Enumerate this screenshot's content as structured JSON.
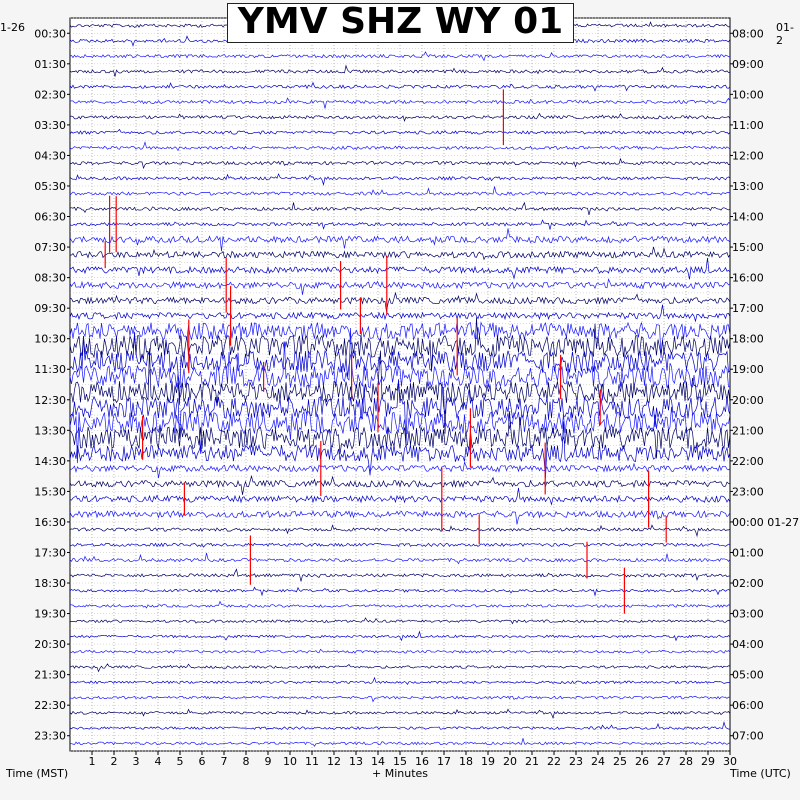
{
  "title": "YMV SHZ WY 01",
  "date_left": "1-26",
  "date_right": "01-2",
  "xlabel_left": "Time (MST)",
  "xlabel_center": "+ Minutes",
  "xlabel_right": "Time (UTC)",
  "colors": {
    "traces": [
      "#000066",
      "#0000cc",
      "#1a1aff"
    ],
    "spike": "#ff0000",
    "grid": "#888888"
  },
  "chart_data": {
    "type": "line",
    "title": "YMV SHZ WY 01",
    "xlabel": "+ Minutes",
    "xlim": [
      0,
      30
    ],
    "x_ticks": [
      1,
      2,
      3,
      4,
      5,
      6,
      7,
      8,
      9,
      10,
      11,
      12,
      13,
      14,
      15,
      16,
      17,
      18,
      19,
      20,
      21,
      22,
      23,
      24,
      25,
      26,
      27,
      28,
      29,
      30
    ],
    "rows_per_hour": 2,
    "left_axis_label": "Time (MST)",
    "left_ticks": [
      "00:30",
      "01:30",
      "02:30",
      "03:30",
      "04:30",
      "05:30",
      "06:30",
      "07:30",
      "08:30",
      "09:30",
      "10:30",
      "11:30",
      "12:30",
      "13:30",
      "14:30",
      "15:30",
      "16:30",
      "17:30",
      "18:30",
      "19:30",
      "20:30",
      "21:30",
      "22:30",
      "23:30"
    ],
    "right_axis_label": "Time (UTC)",
    "right_ticks": [
      "08:00",
      "09:00",
      "10:00",
      "11:00",
      "12:00",
      "13:00",
      "14:00",
      "15:00",
      "16:00",
      "17:00",
      "18:00",
      "19:00",
      "20:00",
      "21:00",
      "22:00",
      "23:00",
      "00:00 01-27",
      "01:00",
      "02:00",
      "03:00",
      "04:00",
      "05:00",
      "06:00",
      "07:00"
    ],
    "grid": true
  }
}
